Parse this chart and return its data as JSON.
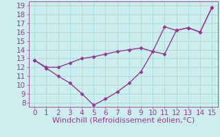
{
  "x": [
    0,
    1,
    2,
    3,
    4,
    5,
    6,
    7,
    8,
    9,
    10,
    11,
    12,
    13,
    14,
    15
  ],
  "y_upper": [
    12.8,
    12.0,
    12.0,
    12.5,
    13.0,
    13.2,
    13.5,
    13.8,
    14.0,
    14.2,
    13.8,
    16.6,
    16.2,
    16.5,
    16.0,
    18.8
  ],
  "y_lower": [
    12.8,
    11.9,
    11.0,
    10.2,
    9.0,
    7.7,
    8.4,
    9.2,
    10.2,
    11.5,
    13.8,
    13.5,
    16.2,
    16.5,
    16.0,
    18.8
  ],
  "line_color": "#993399",
  "marker": "D",
  "markersize": 2.5,
  "linewidth": 1.0,
  "xlabel": "Windchill (Refroidissement éolien,°C)",
  "xlim": [
    -0.5,
    15.5
  ],
  "ylim": [
    7.5,
    19.5
  ],
  "yticks": [
    8,
    9,
    10,
    11,
    12,
    13,
    14,
    15,
    16,
    17,
    18,
    19
  ],
  "xticks": [
    0,
    1,
    2,
    3,
    4,
    5,
    6,
    7,
    8,
    9,
    10,
    11,
    12,
    13,
    14,
    15
  ],
  "background_color": "#cceeed",
  "grid_color": "#b0dede",
  "tick_color": "#993399",
  "label_color": "#993399",
  "xlabel_fontsize": 8,
  "tick_fontsize": 7.5
}
